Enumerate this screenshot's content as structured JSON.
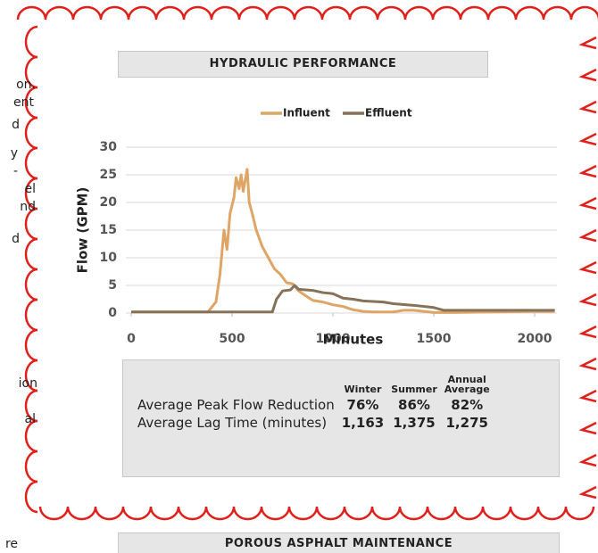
{
  "side_text": [
    "on.",
    "ent",
    "d",
    "y",
    "-",
    "el",
    "nd",
    "d",
    "ion",
    "al",
    "re"
  ],
  "chart_data": {
    "type": "line",
    "title": "HYDRAULIC PERFORMANCE",
    "xlabel": "Minutes",
    "ylabel": "Flow (GPM)",
    "xlim": [
      0,
      2110
    ],
    "xticks": [
      0,
      500,
      1000,
      1500,
      2000
    ],
    "ylim": [
      0,
      30
    ],
    "yticks": [
      0,
      5,
      10,
      15,
      20,
      25,
      30
    ],
    "grid": true,
    "legend": "top",
    "series": [
      {
        "name": "Influent",
        "color": "#dfa567",
        "x": [
          0,
          380,
          420,
          440,
          460,
          475,
          490,
          510,
          520,
          535,
          545,
          555,
          565,
          575,
          585,
          600,
          620,
          650,
          680,
          710,
          740,
          770,
          800,
          830,
          870,
          900,
          950,
          1000,
          1050,
          1100,
          1150,
          1200,
          1300,
          1350,
          1400,
          1500,
          1600,
          1800,
          2000,
          2100
        ],
        "values": [
          0.2,
          0.2,
          2,
          7,
          15,
          11.5,
          18,
          21,
          24.5,
          22.5,
          25,
          22,
          24,
          26,
          20,
          18,
          15,
          12,
          10,
          8,
          7,
          5.5,
          5.3,
          4,
          3,
          2.3,
          2,
          1.5,
          1.2,
          0.6,
          0.3,
          0.2,
          0.2,
          0.5,
          0.5,
          0.1,
          0.1,
          0.2,
          0.3,
          0.3
        ]
      },
      {
        "name": "Effluent",
        "color": "#857258",
        "x": [
          0,
          700,
          720,
          750,
          790,
          810,
          830,
          900,
          950,
          1000,
          1050,
          1100,
          1150,
          1250,
          1300,
          1400,
          1500,
          1550,
          1600,
          2000,
          2100
        ],
        "values": [
          0.2,
          0.2,
          2.5,
          4,
          4.2,
          5,
          4.3,
          4.1,
          3.7,
          3.5,
          2.7,
          2.5,
          2.2,
          2.0,
          1.7,
          1.4,
          1.0,
          0.5,
          0.5,
          0.5,
          0.5
        ]
      }
    ]
  },
  "table": {
    "columns": [
      "Winter",
      "Summer",
      "Annual Average"
    ],
    "rows": [
      [
        "Average Peak Flow Reduction",
        "76%",
        "86%",
        "82%"
      ],
      [
        "Average Lag Time (minutes)",
        "1,163",
        "1,375",
        "1,275"
      ]
    ]
  },
  "footer": {
    "title": "POROUS ASPHALT MAINTENANCE"
  }
}
